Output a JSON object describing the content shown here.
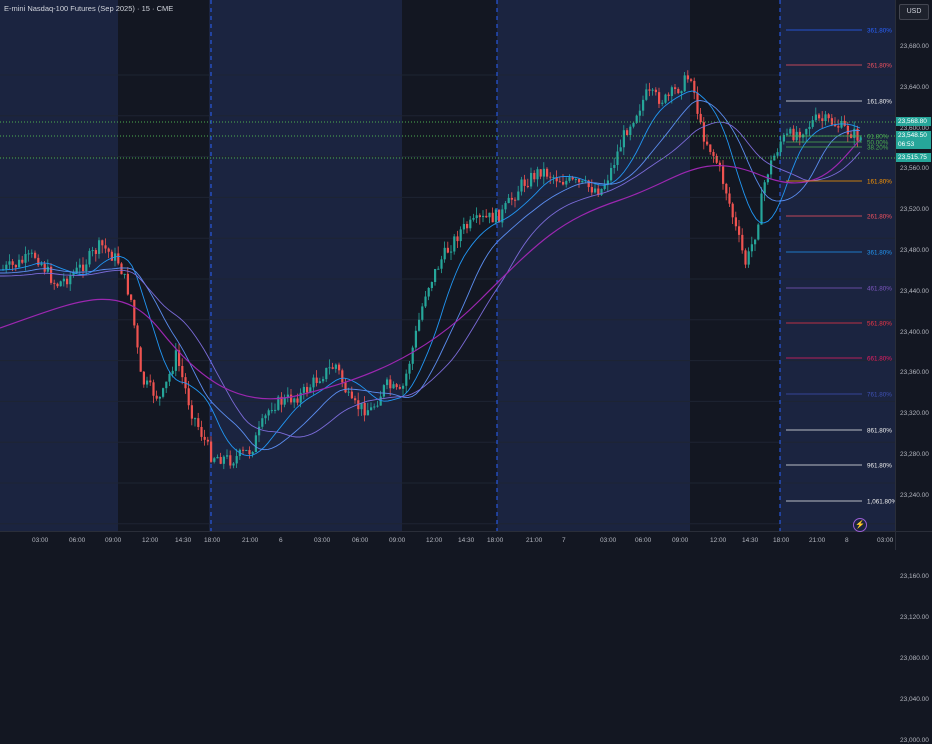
{
  "header": {
    "title": "E-mini Nasdaq-100 Futures (Sep 2025) · 15 · CME"
  },
  "currency_button": {
    "label": "USD"
  },
  "price_axis": {
    "ticks": [
      "23,680.00",
      "23,640.00",
      "23,600.00",
      "23,560.00",
      "23,520.00",
      "23,480.00",
      "23,440.00",
      "23,400.00",
      "23,360.00",
      "23,320.00",
      "23,280.00",
      "23,240.00",
      "23,200.00",
      "23,160.00",
      "23,120.00",
      "23,080.00",
      "23,040.00",
      "23,000.00"
    ]
  },
  "price_tags": {
    "upper_line": "23,568.80",
    "current_price": "23,548.50",
    "countdown": "06:53",
    "lower_line": "23,515.75"
  },
  "time_axis": {
    "ticks": [
      "5",
      "03:00",
      "06:00",
      "09:00",
      "12:00",
      "14:30",
      "18:00",
      "21:00",
      "6",
      "03:00",
      "06:00",
      "09:00",
      "12:00",
      "14:30",
      "18:00",
      "21:00",
      "7",
      "03:00",
      "06:00",
      "09:00",
      "12:00",
      "14:30",
      "18:00",
      "21:00",
      "8",
      "03:00"
    ]
  },
  "fib_levels": [
    {
      "label": "361.80%",
      "color": "#2962ff"
    },
    {
      "label": "261.80%",
      "color": "#f7525f"
    },
    {
      "label": "161.80%",
      "color": "#f0f0f0"
    },
    {
      "label": "61.80%",
      "color": "#4caf50"
    },
    {
      "label": "50.00%",
      "color": "#4caf50"
    },
    {
      "label": "38.20%",
      "color": "#4caf50"
    },
    {
      "label": "161.80%",
      "color": "#ff9800"
    },
    {
      "label": "261.80%",
      "color": "#f7525f"
    },
    {
      "label": "361.80%",
      "color": "#2196f3"
    },
    {
      "label": "461.80%",
      "color": "#7e57c2"
    },
    {
      "label": "561.80%",
      "color": "#f23645"
    },
    {
      "label": "661.80%",
      "color": "#e91e63"
    },
    {
      "label": "761.80%",
      "color": "#3f51b5"
    },
    {
      "label": "861.80%",
      "color": "#f0f0f0"
    },
    {
      "label": "961.80%",
      "color": "#f0f0f0"
    },
    {
      "label": "1,061.80%",
      "color": "#f0f0f0"
    }
  ],
  "colors": {
    "background": "#131722",
    "session_shade": "#1b2440",
    "up": "#26a69a",
    "down": "#ef5350",
    "ma_fast": "#2196f3",
    "ma_mid": "#5b8def",
    "ma_slow": "#9c27b0",
    "dotted_line": "#4caf50"
  },
  "icons": {
    "replay": "lightning-icon"
  }
}
